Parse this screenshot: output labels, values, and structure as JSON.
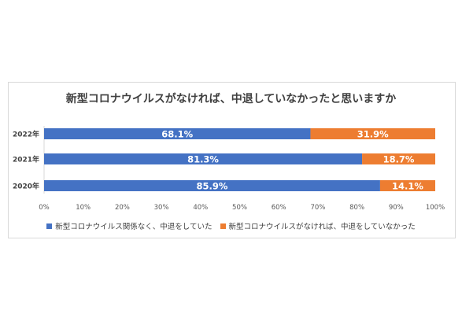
{
  "chart_data": {
    "type": "bar",
    "orientation": "horizontal",
    "stacked": true,
    "title": "新型コロナウイルスがなければ、中退していなかったと思いますか",
    "categories": [
      "2022年",
      "2021年",
      "2020年"
    ],
    "series": [
      {
        "name": "新型コロナウイルス関係なく、中退をしていた",
        "color": "#4472c4",
        "values": [
          68.1,
          81.3,
          85.9
        ],
        "labels": [
          "68.1%",
          "81.3%",
          "85.9%"
        ]
      },
      {
        "name": "新型コロナウイルスがなければ、中退をしていなかった",
        "color": "#ed7d31",
        "values": [
          31.9,
          18.7,
          14.1
        ],
        "labels": [
          "31.9%",
          "18.7%",
          "14.1%"
        ]
      }
    ],
    "xlim": [
      0,
      100
    ],
    "x_ticks": [
      "0%",
      "10%",
      "20%",
      "30%",
      "40%",
      "50%",
      "60%",
      "70%",
      "80%",
      "90%",
      "100%"
    ],
    "grid": false,
    "legend": "bottom"
  }
}
